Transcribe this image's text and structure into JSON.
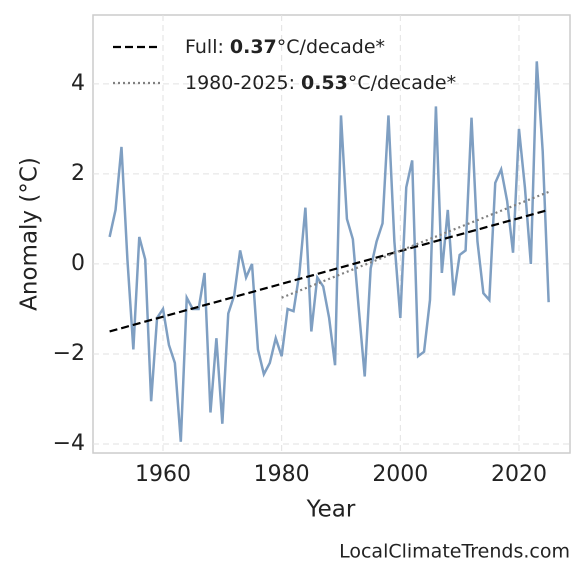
{
  "chart_data": {
    "type": "line",
    "x_label": "Year",
    "y_label": "Anomaly (°C)",
    "source": "LocalClimateTrends.com",
    "xlim": [
      1948.2,
      2028.6
    ],
    "ylim": [
      -4.2,
      5.53
    ],
    "xticks": [
      1960,
      1980,
      2000,
      2020
    ],
    "yticks": [
      {
        "value": -4,
        "label": "−4"
      },
      {
        "value": -2,
        "label": "−2"
      },
      0,
      2,
      4
    ],
    "grid": true,
    "legend": "upper left",
    "x": [
      1951,
      1952,
      1953,
      1954,
      1955,
      1956,
      1957,
      1958,
      1959,
      1960,
      1961,
      1962,
      1963,
      1964,
      1965,
      1966,
      1967,
      1968,
      1969,
      1970,
      1971,
      1972,
      1973,
      1974,
      1975,
      1976,
      1977,
      1978,
      1979,
      1980,
      1981,
      1982,
      1983,
      1984,
      1985,
      1986,
      1987,
      1988,
      1989,
      1990,
      1991,
      1992,
      1993,
      1994,
      1995,
      1996,
      1997,
      1998,
      1999,
      2000,
      2001,
      2002,
      2003,
      2004,
      2005,
      2006,
      2007,
      2008,
      2009,
      2010,
      2011,
      2012,
      2013,
      2014,
      2015,
      2016,
      2017,
      2018,
      2019,
      2020,
      2021,
      2022,
      2023,
      2024,
      2025
    ],
    "series": [
      {
        "color": "#7f9fc2",
        "values": [
          0.6,
          1.2,
          2.6,
          0.1,
          -1.9,
          0.6,
          0.1,
          -3.05,
          -1.2,
          -1.0,
          -1.8,
          -2.2,
          -3.95,
          -0.75,
          -1.0,
          -1.0,
          -0.2,
          -3.3,
          -1.65,
          -3.55,
          -1.1,
          -0.7,
          0.3,
          -0.3,
          0.0,
          -1.9,
          -2.45,
          -2.2,
          -1.65,
          -2.05,
          -1.0,
          -1.05,
          -0.2,
          1.25,
          -1.5,
          -0.3,
          -0.5,
          -1.2,
          -2.25,
          3.3,
          1.0,
          0.55,
          -1.0,
          -2.5,
          -0.1,
          0.5,
          0.9,
          3.3,
          0.5,
          -1.2,
          1.7,
          2.3,
          -2.05,
          -1.95,
          -0.8,
          3.5,
          -0.2,
          1.2,
          -0.7,
          0.2,
          0.3,
          3.25,
          0.5,
          -0.65,
          -0.8,
          1.8,
          2.1,
          1.4,
          0.25,
          3.0,
          1.7,
          0.0,
          4.5,
          2.5,
          -0.85
        ]
      }
    ],
    "trends": [
      {
        "x": [
          1951,
          2025
        ],
        "values": [
          -1.5,
          1.2
        ],
        "color": "#000000",
        "style": "dashed",
        "prefix": "Full:",
        "rate": "0.37",
        "suffix": "°C/decade*"
      },
      {
        "x": [
          1980,
          2025
        ],
        "values": [
          -0.75,
          1.6
        ],
        "color": "#808080",
        "style": "dotted",
        "prefix": "1980-2025:",
        "rate": "0.53",
        "suffix": "°C/decade*"
      }
    ]
  }
}
